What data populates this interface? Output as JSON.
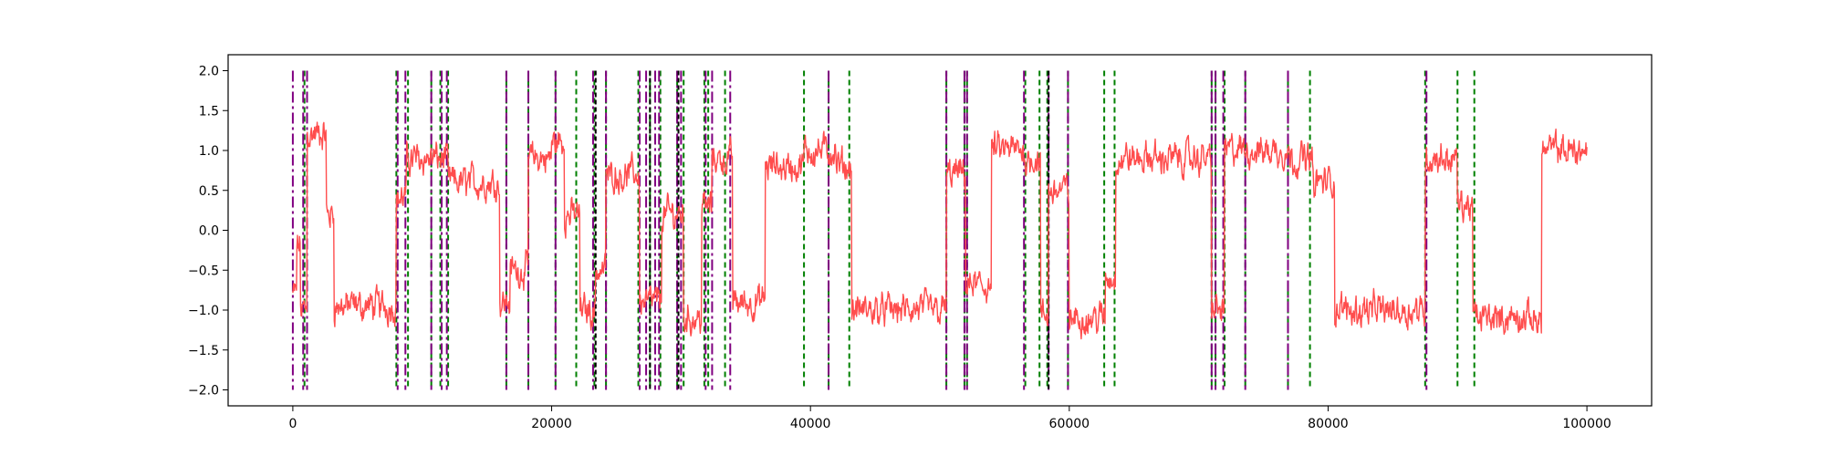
{
  "chart_data": {
    "type": "line",
    "title": "",
    "xlabel": "",
    "ylabel": "",
    "xlim": [
      -5000,
      105000
    ],
    "ylim": [
      -2.2,
      2.2
    ],
    "x_ticks": [
      0,
      20000,
      40000,
      60000,
      80000,
      100000
    ],
    "x_tick_labels": [
      "0",
      "20000",
      "40000",
      "60000",
      "80000",
      "100000"
    ],
    "y_ticks": [
      -2.0,
      -1.5,
      -1.0,
      -0.5,
      0.0,
      0.5,
      1.0,
      1.5,
      2.0
    ],
    "y_tick_labels": [
      "−2.0",
      "−1.5",
      "−1.0",
      "−0.5",
      "0.0",
      "0.5",
      "1.0",
      "1.5",
      "2.0"
    ],
    "grid": false,
    "colors": {
      "signal": "#ff4d4d",
      "green_lines": "#008000",
      "purple_lines": "#800080",
      "black_lines": "#000000"
    },
    "signal": {
      "noise_amplitude": 0.25,
      "segments": [
        [
          0,
          300,
          -0.8
        ],
        [
          300,
          600,
          -0.2
        ],
        [
          600,
          1100,
          -1.0
        ],
        [
          1100,
          2600,
          1.2
        ],
        [
          2600,
          3200,
          0.2
        ],
        [
          3200,
          8000,
          -0.95
        ],
        [
          8000,
          8800,
          0.4
        ],
        [
          8800,
          12000,
          0.9
        ],
        [
          12000,
          16000,
          0.6
        ],
        [
          16000,
          16800,
          -0.9
        ],
        [
          16800,
          18200,
          -0.5
        ],
        [
          18200,
          20000,
          0.9
        ],
        [
          20000,
          21000,
          1.1
        ],
        [
          21000,
          22200,
          0.2
        ],
        [
          22200,
          23400,
          -1.0
        ],
        [
          23400,
          24200,
          -0.5
        ],
        [
          24200,
          26800,
          0.7
        ],
        [
          26800,
          28500,
          -0.9
        ],
        [
          28500,
          30200,
          0.2
        ],
        [
          30200,
          31600,
          -1.1
        ],
        [
          31600,
          32400,
          0.3
        ],
        [
          32400,
          34000,
          0.9
        ],
        [
          34000,
          36500,
          -0.9
        ],
        [
          36500,
          39500,
          0.8
        ],
        [
          39500,
          42000,
          1.0
        ],
        [
          42000,
          43200,
          0.8
        ],
        [
          43200,
          50500,
          -1.0
        ],
        [
          50500,
          52000,
          0.7
        ],
        [
          52000,
          54000,
          -0.7
        ],
        [
          54000,
          56500,
          1.0
        ],
        [
          56500,
          57800,
          0.9
        ],
        [
          57800,
          58400,
          -1.1
        ],
        [
          58400,
          60000,
          0.5
        ],
        [
          60000,
          62800,
          -1.1
        ],
        [
          62800,
          63600,
          -0.6
        ],
        [
          63600,
          71000,
          0.9
        ],
        [
          71000,
          72000,
          -1.0
        ],
        [
          72000,
          77000,
          1.0
        ],
        [
          77000,
          78800,
          0.9
        ],
        [
          78800,
          80500,
          0.6
        ],
        [
          80500,
          87500,
          -1.0
        ],
        [
          87500,
          90000,
          0.9
        ],
        [
          90000,
          91200,
          0.3
        ],
        [
          91200,
          96500,
          -1.1
        ],
        [
          96500,
          100000,
          1.0
        ]
      ]
    },
    "vlines": {
      "ymin": -2.0,
      "ymax": 2.0,
      "green": [
        900,
        8000,
        8900,
        10700,
        11400,
        12000,
        16500,
        18200,
        20300,
        21900,
        23300,
        24200,
        26700,
        27600,
        28400,
        29700,
        30200,
        31800,
        32100,
        33400,
        39500,
        41400,
        43000,
        50500,
        51900,
        52100,
        56600,
        57700,
        58300,
        59900,
        62700,
        63500,
        71000,
        71300,
        72000,
        73600,
        76900,
        78600,
        87500,
        90000,
        91300
      ],
      "purple": [
        0,
        800,
        1100,
        8100,
        8700,
        10700,
        11500,
        11900,
        16500,
        18200,
        20300,
        23200,
        24200,
        26800,
        27300,
        28000,
        28300,
        29700,
        30000,
        31900,
        32400,
        33800,
        41400,
        50500,
        51900,
        52100,
        56500,
        58400,
        59900,
        71000,
        71300,
        71900,
        73600,
        76900,
        87600
      ],
      "black": [
        23400,
        27600,
        29800,
        58400
      ]
    }
  }
}
